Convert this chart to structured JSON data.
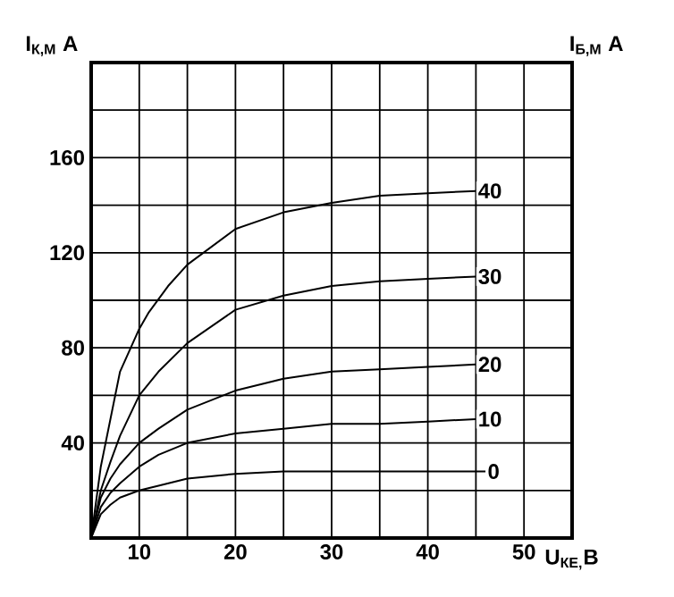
{
  "chart_data": {
    "type": "line",
    "xlabel": "U$_{КЕ,}$В",
    "ylabel": "I$_{К,М}$ А",
    "legend_title": "I$_{Б,М}$ А",
    "legend": false,
    "grid": true,
    "marker": "none",
    "line_style": "solid",
    "xlim": [
      5,
      55
    ],
    "ylim": [
      0,
      200
    ],
    "xticks": [
      10,
      {
        "value": 15,
        "label": null
      },
      20,
      {
        "value": 25,
        "label": null
      },
      30,
      {
        "value": 35,
        "label": null
      },
      40,
      {
        "value": 45,
        "label": null
      },
      50
    ],
    "yticks": [
      {
        "value": 20,
        "label": null
      },
      40,
      {
        "value": 60,
        "label": null
      },
      80,
      {
        "value": 100,
        "label": null
      },
      120,
      {
        "value": 140,
        "label": null
      },
      160,
      {
        "value": 180,
        "label": null
      }
    ],
    "series": [
      {
        "name": "0",
        "color": "#000000",
        "x": [
          5,
          6,
          7,
          8,
          10,
          12,
          15,
          20,
          25,
          30,
          35,
          40,
          46
        ],
        "values": [
          0,
          10,
          14,
          17,
          20,
          22,
          25,
          27,
          28,
          28,
          28,
          28,
          28
        ]
      },
      {
        "name": "10",
        "color": "#000000",
        "x": [
          5,
          6,
          7,
          8,
          10,
          12,
          15,
          20,
          25,
          30,
          35,
          40,
          45
        ],
        "values": [
          0,
          13,
          19,
          23,
          30,
          35,
          40,
          44,
          46,
          48,
          48,
          49,
          50
        ]
      },
      {
        "name": "20",
        "color": "#000000",
        "x": [
          5,
          6,
          7,
          8,
          10,
          12,
          15,
          20,
          25,
          30,
          35,
          40,
          45
        ],
        "values": [
          0,
          17,
          25,
          31,
          40,
          46,
          54,
          62,
          67,
          70,
          71,
          72,
          73
        ]
      },
      {
        "name": "30",
        "color": "#000000",
        "x": [
          5,
          6,
          7,
          8,
          10,
          12,
          15,
          20,
          25,
          30,
          35,
          40,
          45
        ],
        "values": [
          0,
          20,
          32,
          43,
          60,
          70,
          82,
          96,
          102,
          106,
          108,
          109,
          110
        ]
      },
      {
        "name": "40",
        "color": "#000000",
        "x": [
          5,
          6,
          7,
          8,
          10,
          11,
          13,
          15,
          20,
          25,
          30,
          35,
          40,
          45
        ],
        "values": [
          0,
          30,
          50,
          70,
          88,
          95,
          106,
          115,
          130,
          137,
          141,
          144,
          145,
          146
        ]
      }
    ]
  }
}
